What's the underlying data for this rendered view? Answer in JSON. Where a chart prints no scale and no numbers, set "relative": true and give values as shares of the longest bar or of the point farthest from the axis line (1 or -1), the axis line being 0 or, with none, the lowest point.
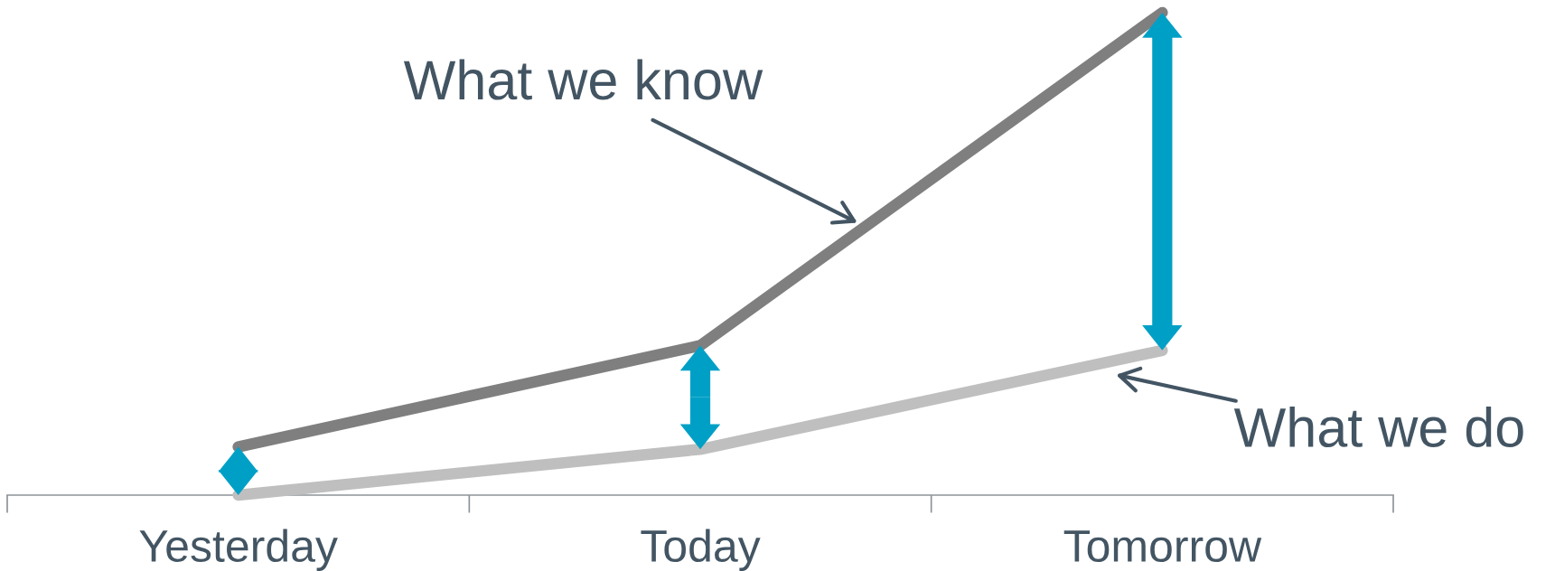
{
  "chart_data": {
    "type": "line",
    "relative": true,
    "categories": [
      "Yesterday",
      "Today",
      "Tomorrow"
    ],
    "series": [
      {
        "color": "#7f7f7f",
        "values": [
          0.1,
          0.31,
          1.0
        ]
      },
      {
        "color": "#bfbfbf",
        "values": [
          0.0,
          0.095,
          0.3
        ]
      }
    ],
    "annotations": [
      "What we know",
      "What we do"
    ],
    "grid": false,
    "legend": false,
    "line_style": "solid",
    "tick_labels": "x"
  }
}
